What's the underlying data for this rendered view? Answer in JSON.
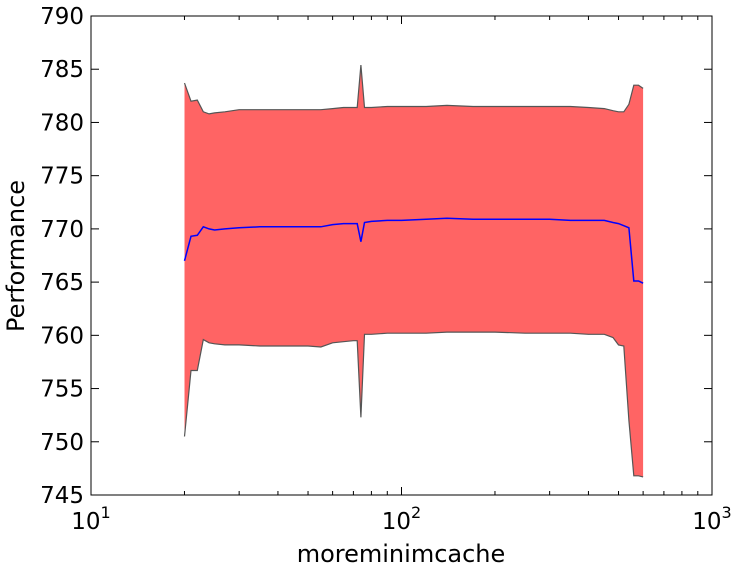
{
  "chart_data": {
    "type": "area",
    "xlabel": "moreminimcache",
    "ylabel": "Performance",
    "x_scale": "log",
    "xlim": [
      10,
      1000
    ],
    "ylim": [
      745,
      790
    ],
    "x_ticks": [
      {
        "value": 10,
        "base": "10",
        "exp": "1"
      },
      {
        "value": 100,
        "base": "10",
        "exp": "2"
      },
      {
        "value": 1000,
        "base": "10",
        "exp": "3"
      }
    ],
    "y_ticks": [
      745,
      750,
      755,
      760,
      765,
      770,
      775,
      780,
      785,
      790
    ],
    "grid": false,
    "colors": {
      "band_fill": "#ff6464",
      "band_edge": "#555555",
      "mean_line": "#0000ff",
      "axes": "#000000"
    },
    "series": [
      {
        "role": "mean",
        "x": [
          20,
          21,
          22,
          23,
          24,
          25,
          27,
          30,
          35,
          40,
          50,
          55,
          60,
          65,
          70,
          72,
          74,
          76,
          80,
          90,
          100,
          120,
          140,
          170,
          200,
          250,
          300,
          350,
          400,
          450,
          480,
          500,
          520,
          540,
          560,
          580,
          600
        ],
        "values": [
          767.0,
          769.3,
          769.4,
          770.2,
          770.0,
          769.9,
          770.0,
          770.1,
          770.2,
          770.2,
          770.2,
          770.2,
          770.4,
          770.5,
          770.5,
          770.5,
          768.8,
          770.6,
          770.7,
          770.8,
          770.8,
          770.9,
          771.0,
          770.9,
          770.9,
          770.9,
          770.9,
          770.8,
          770.8,
          770.8,
          770.6,
          770.5,
          770.3,
          770.1,
          765.1,
          765.1,
          764.9
        ]
      },
      {
        "role": "upper",
        "x": [
          20,
          21,
          22,
          23,
          24,
          25,
          27,
          30,
          35,
          40,
          50,
          55,
          60,
          65,
          70,
          72,
          74,
          76,
          80,
          90,
          100,
          120,
          140,
          170,
          200,
          250,
          300,
          350,
          400,
          450,
          480,
          500,
          520,
          540,
          560,
          580,
          600
        ],
        "values": [
          783.7,
          782.0,
          782.1,
          781.0,
          780.8,
          780.9,
          781.0,
          781.2,
          781.2,
          781.2,
          781.2,
          781.2,
          781.3,
          781.4,
          781.4,
          781.4,
          785.4,
          781.4,
          781.4,
          781.5,
          781.5,
          781.5,
          781.6,
          781.5,
          781.5,
          781.5,
          781.5,
          781.5,
          781.4,
          781.3,
          781.1,
          781.0,
          781.0,
          781.7,
          783.5,
          783.5,
          783.2
        ]
      },
      {
        "role": "lower",
        "x": [
          20,
          21,
          22,
          23,
          24,
          25,
          27,
          30,
          35,
          40,
          50,
          55,
          60,
          65,
          70,
          72,
          74,
          76,
          80,
          90,
          100,
          120,
          140,
          170,
          200,
          250,
          300,
          350,
          400,
          450,
          480,
          500,
          520,
          540,
          560,
          580,
          600
        ],
        "values": [
          750.5,
          756.7,
          756.7,
          759.6,
          759.3,
          759.2,
          759.1,
          759.1,
          759.0,
          759.0,
          759.0,
          758.9,
          759.3,
          759.4,
          759.5,
          759.5,
          752.3,
          760.1,
          760.1,
          760.2,
          760.2,
          760.2,
          760.3,
          760.3,
          760.3,
          760.2,
          760.2,
          760.2,
          760.1,
          760.1,
          759.8,
          759.1,
          759.0,
          752.0,
          746.8,
          746.8,
          746.7
        ]
      }
    ]
  }
}
